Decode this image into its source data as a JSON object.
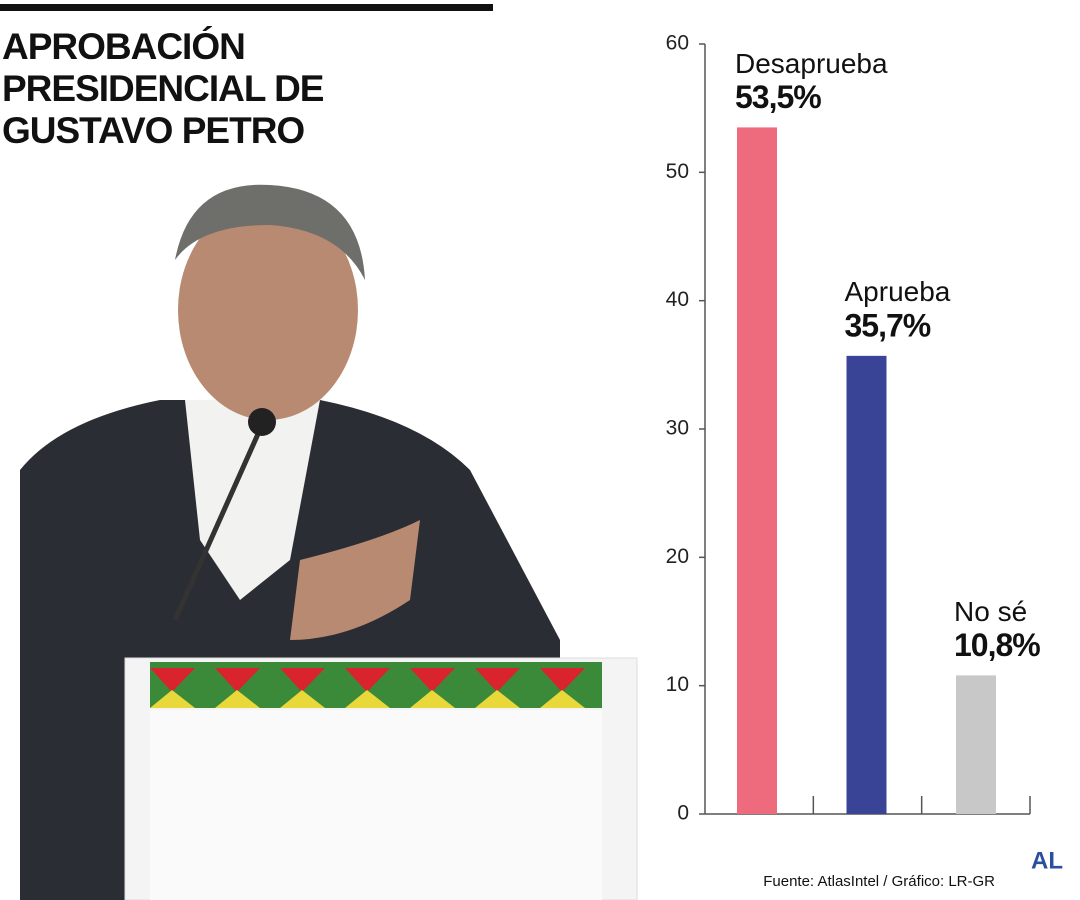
{
  "chart_data": {
    "type": "bar",
    "title": "APROBACIÓN PRESIDENCIAL DE GUSTAVO PETRO",
    "categories": [
      "Desaprueba",
      "Aprueba",
      "No sé"
    ],
    "values": [
      53.5,
      35.7,
      10.8
    ],
    "value_labels": [
      "53,5%",
      "35,7%",
      "10,8%"
    ],
    "colors": [
      "#ee6b7d",
      "#3a4496",
      "#c8c8c8"
    ],
    "ylim": [
      0,
      60
    ],
    "yticks": [
      0,
      10,
      20,
      30,
      40,
      50,
      60
    ],
    "grid": false,
    "source": "Fuente: AtlasIntel / Gráfico: LR-GR",
    "logo": "AL"
  }
}
